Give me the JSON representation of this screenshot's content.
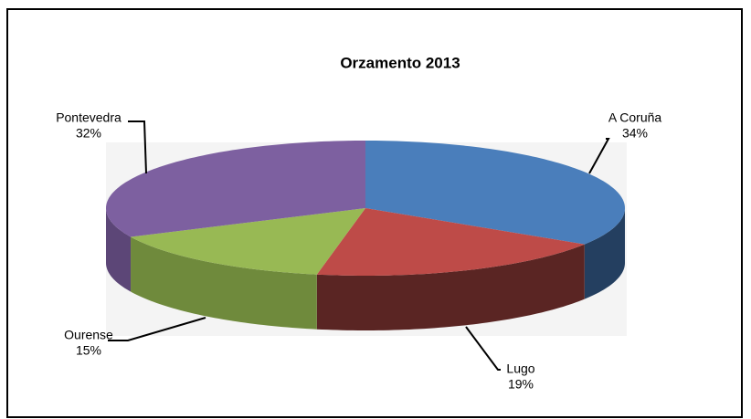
{
  "chart_data": {
    "type": "pie",
    "title": "Orzamento 2013",
    "categories": [
      "A Coruña",
      "Lugo",
      "Ourense",
      "Pontevedra"
    ],
    "values": [
      34,
      19,
      15,
      32
    ],
    "value_labels": [
      "34%",
      "19%",
      "15%",
      "32%"
    ],
    "colors": [
      "#4a7ebb",
      "#be4b48",
      "#98b954",
      "#7d60a0"
    ],
    "side_colors": [
      "#243f60",
      "#5a2523",
      "#6f8a3c",
      "#5c4677"
    ]
  }
}
